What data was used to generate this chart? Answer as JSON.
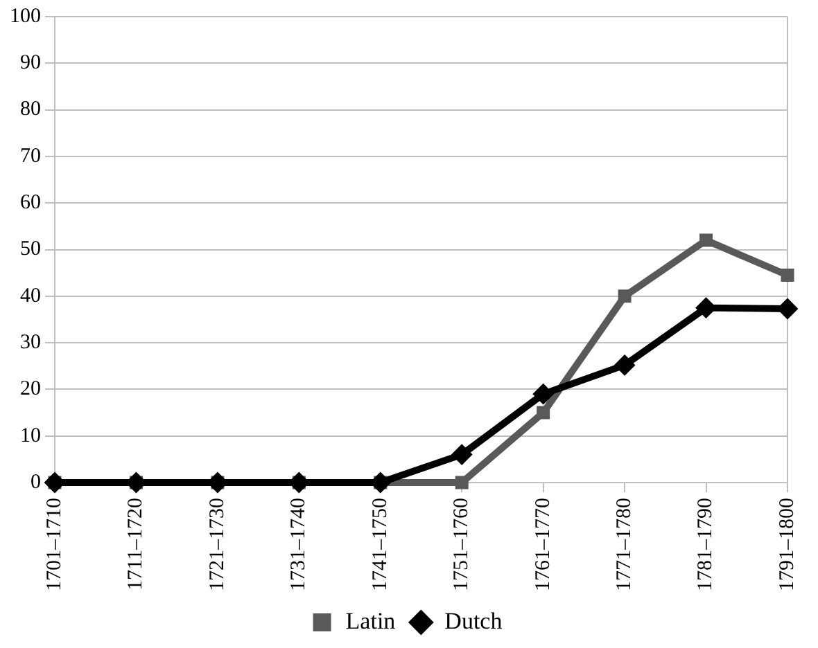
{
  "chart_data": {
    "type": "line",
    "categories": [
      "1701–1710",
      "1711–1720",
      "1721–1730",
      "1731–1740",
      "1741–1750",
      "1751–1760",
      "1761–1770",
      "1771–1780",
      "1781–1790",
      "1791–1800"
    ],
    "series": [
      {
        "name": "Latin",
        "color": "#595959",
        "marker": "square",
        "values": [
          0,
          0,
          0,
          0,
          0,
          0,
          15,
          40,
          52,
          44.5
        ]
      },
      {
        "name": "Dutch",
        "color": "#000000",
        "marker": "diamond",
        "values": [
          0,
          0,
          0,
          0,
          0,
          6,
          19,
          25.2,
          37.5,
          37.3
        ]
      }
    ],
    "ylim": [
      0,
      100
    ],
    "yticks": [
      0,
      10,
      20,
      30,
      40,
      50,
      60,
      70,
      80,
      90,
      100
    ],
    "grid": "y",
    "legend": "bottom",
    "line_style": "solid"
  }
}
